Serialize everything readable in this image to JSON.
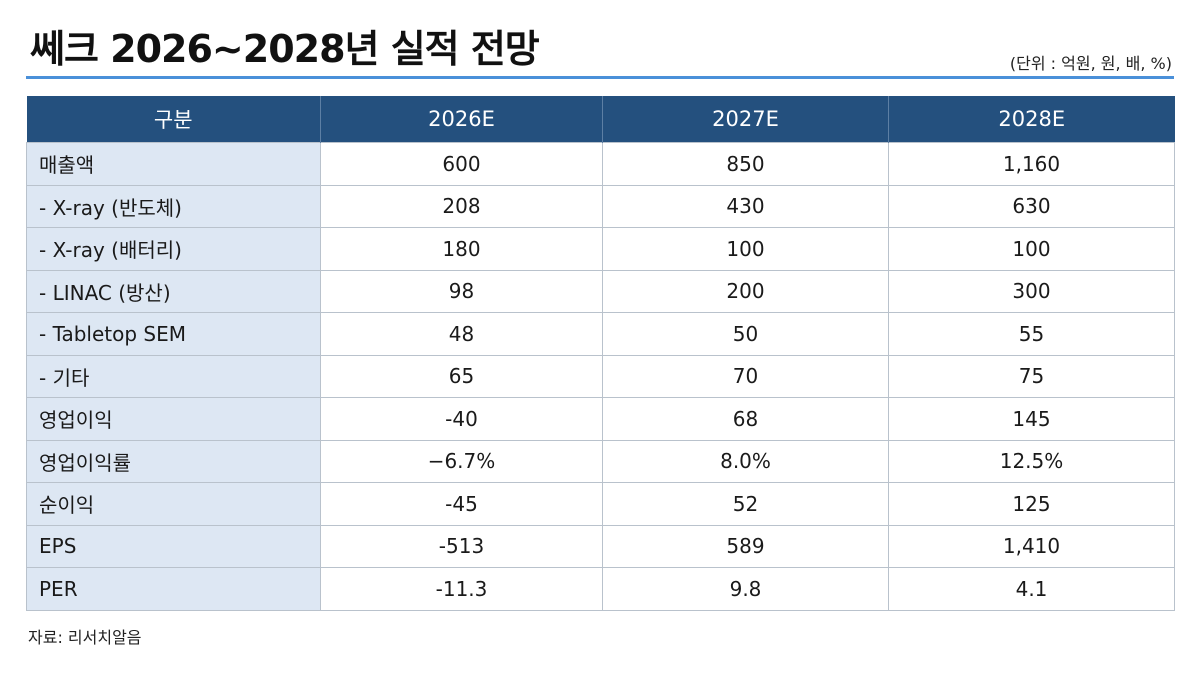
{
  "title": "쎄크  2026~2028년 실적 전망",
  "unit_note": "(단위 : 억원, 원, 배, %)",
  "table": {
    "headers": [
      "구분",
      "2026E",
      "2027E",
      "2028E"
    ],
    "rows": [
      {
        "label": "매출액",
        "values": [
          "600",
          "850",
          "1,160"
        ]
      },
      {
        "label": " - X-ray (반도체)",
        "values": [
          "208",
          "430",
          "630"
        ]
      },
      {
        "label": " - X-ray (배터리)",
        "values": [
          "180",
          "100",
          "100"
        ]
      },
      {
        "label": " - LINAC (방산)",
        "values": [
          "98",
          "200",
          "300"
        ]
      },
      {
        "label": " - Tabletop SEM",
        "values": [
          "48",
          "50",
          "55"
        ]
      },
      {
        "label": " - 기타",
        "values": [
          "65",
          "70",
          "75"
        ]
      },
      {
        "label": "영업이익",
        "values": [
          "-40",
          "68",
          "145"
        ]
      },
      {
        "label": "영업이익률",
        "values": [
          "−6.7%",
          "8.0%",
          "12.5%"
        ]
      },
      {
        "label": "순이익",
        "values": [
          "-45",
          "52",
          "125"
        ]
      },
      {
        "label": "EPS",
        "values": [
          "-513",
          "589",
          "1,410"
        ]
      },
      {
        "label": "PER",
        "values": [
          "-11.3",
          "9.8",
          "4.1"
        ]
      }
    ]
  },
  "source": "자료: 리서치알음",
  "colors": {
    "header_bg": "#24507e",
    "label_bg": "#dde7f3",
    "accent_rule": "#4a90d9"
  }
}
